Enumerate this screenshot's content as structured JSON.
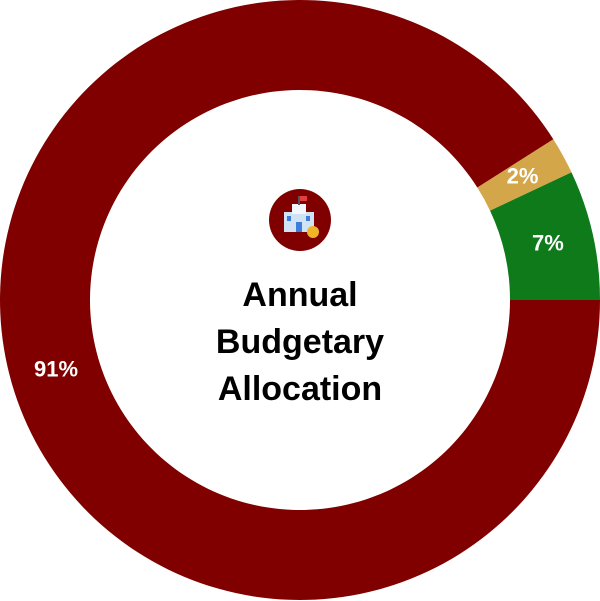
{
  "chart_data": {
    "type": "donut",
    "title": "Annual Budgetary Allocation",
    "values": [
      7,
      2,
      91
    ],
    "value_labels": [
      "7%",
      "2%",
      "91%"
    ],
    "colors": [
      "#0e7a1a",
      "#d4a64a",
      "#800000"
    ]
  }
}
